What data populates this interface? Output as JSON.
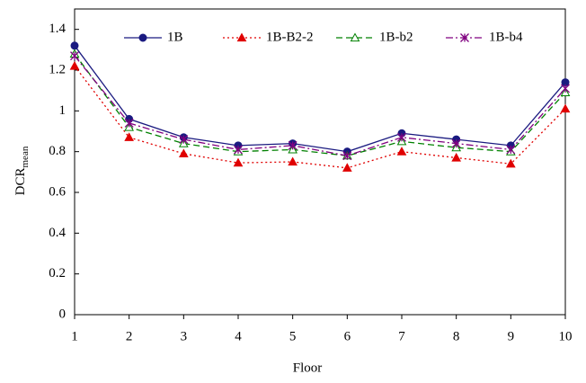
{
  "chart_data": {
    "type": "line",
    "ylabel": {
      "text": "DCR",
      "subscript": "mean"
    },
    "xlabel": "Floor",
    "x": [
      1,
      2,
      3,
      4,
      5,
      6,
      7,
      8,
      9,
      10
    ],
    "xlim": [
      1,
      10
    ],
    "xticks": [
      1,
      2,
      3,
      4,
      5,
      6,
      7,
      8,
      9,
      10
    ],
    "ylim": [
      0,
      1.5
    ],
    "yticks": [
      0,
      0.2,
      0.4,
      0.6,
      0.8,
      1,
      1.2,
      1.4
    ],
    "legend": "top",
    "series": [
      {
        "name": "1B",
        "color": "#1a1a80",
        "dash": "solid",
        "marker": "circle",
        "values": [
          1.32,
          0.96,
          0.87,
          0.83,
          0.84,
          0.8,
          0.89,
          0.86,
          0.83,
          1.14
        ]
      },
      {
        "name": "1B-B2-2",
        "color": "#e00000",
        "dash": "dotted",
        "marker": "triangle",
        "values": [
          1.22,
          0.87,
          0.79,
          0.745,
          0.75,
          0.72,
          0.8,
          0.77,
          0.74,
          1.01
        ]
      },
      {
        "name": "1B-b2",
        "color": "#008000",
        "dash": "dashed",
        "marker": "open-triangle",
        "values": [
          1.28,
          0.92,
          0.84,
          0.8,
          0.81,
          0.78,
          0.85,
          0.82,
          0.8,
          1.09
        ]
      },
      {
        "name": "1B-b4",
        "color": "#800080",
        "dash": "dashdot",
        "marker": "asterisk",
        "values": [
          1.27,
          0.94,
          0.86,
          0.81,
          0.83,
          0.78,
          0.87,
          0.84,
          0.81,
          1.11
        ]
      }
    ]
  }
}
